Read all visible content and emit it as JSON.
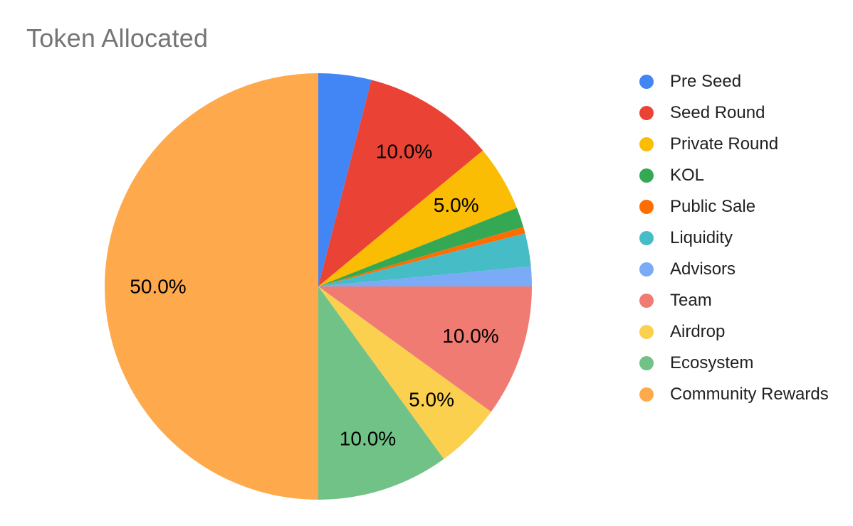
{
  "chart_data": {
    "type": "pie",
    "title": "Token Allocated",
    "title_color": "#757575",
    "background_color": "#ffffff",
    "legend_position": "right",
    "labels_shown_as": "percent, one decimal, only on slices >= 5%",
    "slices": [
      {
        "label": "Pre Seed",
        "value": 4.0,
        "color": "#4285F4"
      },
      {
        "label": "Seed Round",
        "value": 10.0,
        "color": "#EA4335",
        "pct_label": "10.0%"
      },
      {
        "label": "Private Round",
        "value": 5.0,
        "color": "#FBBC04",
        "pct_label": "5.0%"
      },
      {
        "label": "KOL",
        "value": 1.5,
        "color": "#34A853"
      },
      {
        "label": "Public Sale",
        "value": 0.5,
        "color": "#FF6D01"
      },
      {
        "label": "Liquidity",
        "value": 2.5,
        "color": "#46BDC6"
      },
      {
        "label": "Advisors",
        "value": 1.5,
        "color": "#7BAAF7"
      },
      {
        "label": "Team",
        "value": 10.0,
        "color": "#F07B72",
        "pct_label": "10.0%"
      },
      {
        "label": "Airdrop",
        "value": 5.0,
        "color": "#FCD04F",
        "pct_label": "5.0%"
      },
      {
        "label": "Ecosystem",
        "value": 10.0,
        "color": "#71C287",
        "pct_label": "10.0%"
      },
      {
        "label": "Community Rewards",
        "value": 50.0,
        "color": "#FFA94D",
        "pct_label": "50.0%"
      }
    ]
  }
}
